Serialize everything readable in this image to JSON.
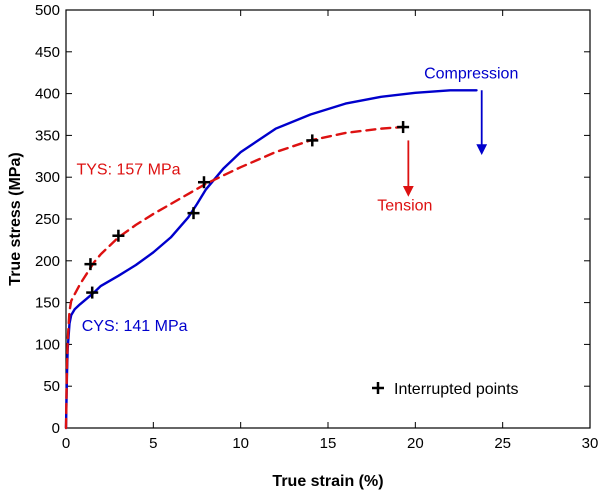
{
  "chart_data": {
    "type": "line",
    "title": "",
    "xlabel": "True strain (%)",
    "ylabel": "True stress (MPa)",
    "xlim": [
      0,
      30
    ],
    "ylim": [
      0,
      500
    ],
    "xticks": [
      0,
      5,
      10,
      15,
      20,
      25,
      30
    ],
    "yticks": [
      0,
      50,
      100,
      150,
      200,
      250,
      300,
      350,
      400,
      450,
      500
    ],
    "grid": false,
    "series": [
      {
        "name": "Compression",
        "color": "#0000cc",
        "style": "solid",
        "x": [
          0,
          0.05,
          0.1,
          0.2,
          0.3,
          0.5,
          0.8,
          1.2,
          1.6,
          2.0,
          3.0,
          4.0,
          5.0,
          6.0,
          7.0,
          7.5,
          8.0,
          9.0,
          10.0,
          12.0,
          14.0,
          16.0,
          18.0,
          20.0,
          22.0,
          23.5
        ],
        "y": [
          0,
          60,
          95,
          125,
          135,
          142,
          148,
          155,
          162,
          170,
          182,
          195,
          210,
          228,
          252,
          268,
          285,
          310,
          330,
          358,
          375,
          388,
          396,
          401,
          404,
          404
        ]
      },
      {
        "name": "Tension",
        "color": "#dd1111",
        "style": "dashed",
        "x": [
          0,
          0.05,
          0.1,
          0.2,
          0.3,
          0.5,
          0.8,
          1.2,
          1.6,
          2.0,
          3.0,
          4.0,
          5.0,
          6.0,
          7.0,
          8.0,
          9.0,
          10.0,
          12.0,
          14.0,
          16.0,
          18.0,
          19.3
        ],
        "y": [
          0,
          70,
          105,
          140,
          152,
          160,
          172,
          185,
          198,
          208,
          228,
          243,
          256,
          268,
          280,
          292,
          302,
          312,
          330,
          344,
          353,
          358,
          360
        ]
      }
    ],
    "interrupted_points": {
      "label": "Interrupted points",
      "compression": [
        [
          1.5,
          162
        ],
        [
          7.3,
          257
        ]
      ],
      "tension": [
        [
          1.4,
          196
        ],
        [
          3.0,
          230
        ],
        [
          7.9,
          294
        ],
        [
          14.1,
          344
        ],
        [
          19.3,
          360
        ]
      ]
    },
    "annotations": [
      {
        "text": "Compression",
        "color": "#0000cc",
        "x": 23.2,
        "y": 418,
        "arrow_x": 23.8,
        "arrow_from_y": 404,
        "arrow_to_y": 333
      },
      {
        "text": "Tension",
        "color": "#dd1111",
        "x": 19.4,
        "y": 260,
        "arrow_x": 19.6,
        "arrow_from_y": 344,
        "arrow_to_y": 283
      },
      {
        "text": "TYS: 157 MPa",
        "color": "#dd1111",
        "x": 0.6,
        "y": 303
      },
      {
        "text": "CYS: 141 MPa",
        "color": "#0000cc",
        "x": 0.9,
        "y": 116
      }
    ],
    "legend": {
      "position": "bottom-right",
      "marker": "+",
      "text": "Interrupted points"
    }
  }
}
